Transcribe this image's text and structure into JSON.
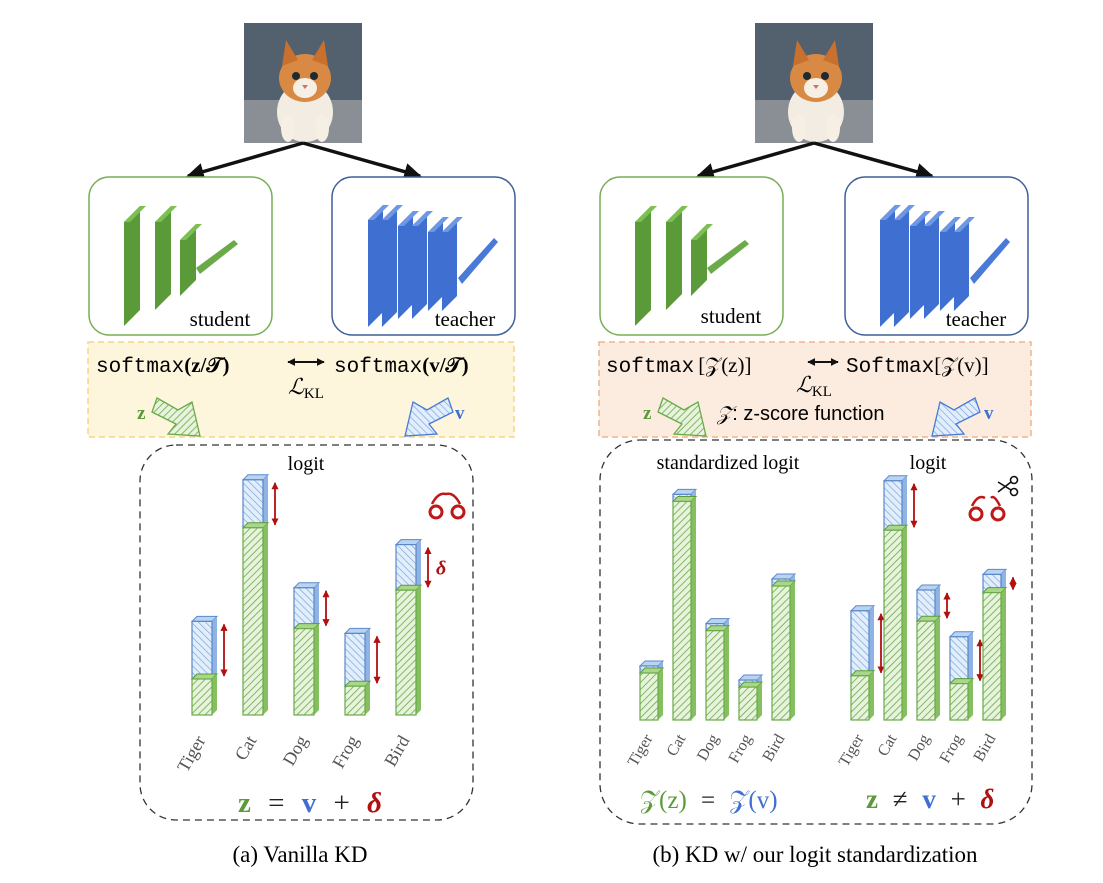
{
  "panel_a": {
    "caption": "(a) Vanilla KD",
    "student_label": "student",
    "teacher_label": "teacher",
    "formula_softmax": "softmax",
    "formula_z_arg": "(z/𝒯)",
    "formula_v_arg": "(v/𝒯)",
    "kl_label": "ℒ",
    "kl_sub": "KL",
    "z_label": "z",
    "v_label": "v",
    "chart_title": "logit",
    "delta_label": "δ",
    "equation": {
      "z": "z",
      "eq": "=",
      "v": "v",
      "plus": "+",
      "delta": "δ"
    }
  },
  "panel_b": {
    "caption": "(b) KD w/ our logit standardization",
    "student_label": "student",
    "teacher_label": "teacher",
    "formula_left": "softmax",
    "formula_left_arg": "[𝒵(z)]",
    "formula_right": "Softmax",
    "formula_right_arg": "[𝒵(v)]",
    "kl_label": "ℒ",
    "kl_sub": "KL",
    "z_label": "z",
    "v_label": "v",
    "zscore_symbol": "𝒵",
    "zscore_text": ": z-score function",
    "std_chart_title": "standardized logit",
    "logit_chart_title": "logit",
    "equation_left": {
      "zz": "𝒵(z)",
      "eq": "=",
      "zv": "𝒵(v)"
    },
    "equation_right": {
      "z": "z",
      "neq": "≠",
      "v": "v",
      "plus": "+",
      "delta": "δ"
    }
  },
  "colors": {
    "student_green": "#5a9a38",
    "teacher_blue": "#3f6fd0",
    "delta_red": "#b01010",
    "box_a_fill": "#fdf6dc",
    "box_b_fill": "#fcecdf"
  },
  "chart_data": [
    {
      "type": "bar",
      "title": "logit",
      "categories": [
        "Tiger",
        "Cat",
        "Dog",
        "Frog",
        "Bird"
      ],
      "series": [
        {
          "values": [
            1.5,
            7.8,
            3.6,
            1.2,
            5.2
          ]
        },
        {
          "values": [
            3.9,
            9.8,
            5.3,
            3.4,
            7.1
          ]
        }
      ]
    },
    {
      "type": "bar",
      "title": "standardized logit",
      "categories": [
        "Tiger",
        "Cat",
        "Dog",
        "Frog",
        "Bird"
      ],
      "series": [
        {
          "values": [
            2.0,
            9.3,
            3.8,
            1.4,
            5.7
          ]
        },
        {
          "values": [
            2.3,
            9.6,
            4.1,
            1.7,
            6.0
          ]
        }
      ]
    },
    {
      "type": "bar",
      "title": "logit",
      "categories": [
        "Tiger",
        "Cat",
        "Dog",
        "Frog",
        "Bird"
      ],
      "series": [
        {
          "values": [
            1.7,
            7.3,
            3.8,
            1.4,
            4.9
          ]
        },
        {
          "values": [
            4.2,
            9.2,
            5.0,
            3.2,
            5.6
          ]
        }
      ]
    }
  ]
}
